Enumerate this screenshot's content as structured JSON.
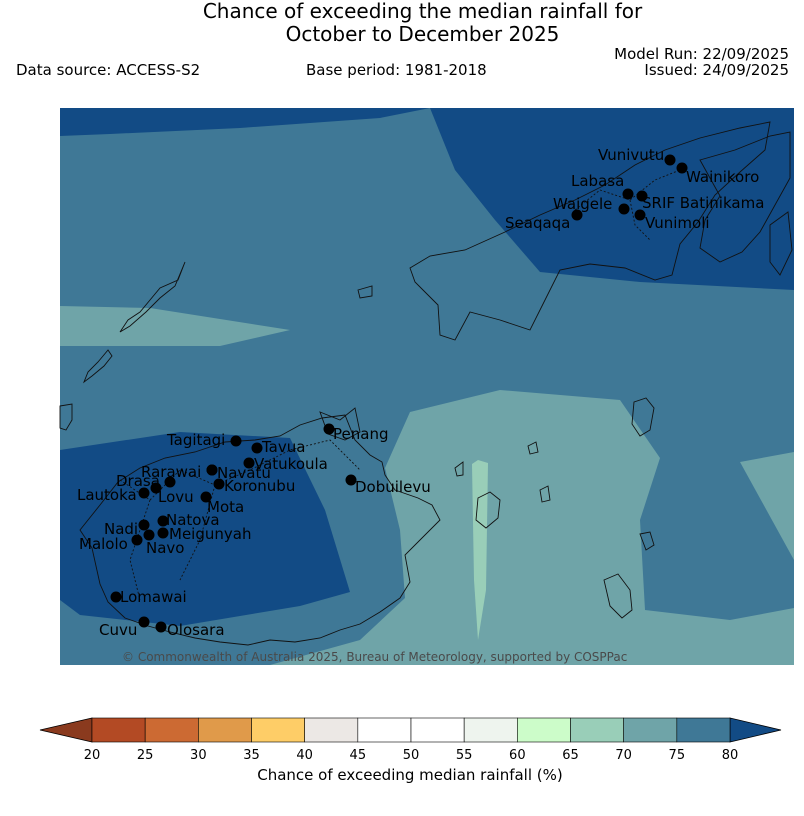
{
  "title_line1": "Chance of exceeding the median rainfall for",
  "title_line2": "October to December 2025",
  "data_source": "Data source: ACCESS-S2",
  "base_period": "Base period: 1981-2018",
  "model_run": "Model Run: 22/09/2025",
  "issued": "Issued: 24/09/2025",
  "copyright": "© Commonwealth of Australia 2025, Bureau of Meteorology, supported by COSPPac",
  "colorbar": {
    "title": "Chance of exceeding median rainfall (%)",
    "ticks": [
      "20",
      "25",
      "30",
      "35",
      "40",
      "45",
      "50",
      "55",
      "60",
      "65",
      "70",
      "75",
      "80"
    ],
    "colors": [
      "#b34a24",
      "#cc6a33",
      "#e09a4a",
      "#fecd67",
      "#ece8e5",
      "#ffffff",
      "#ffffff",
      "#eef4ee",
      "#ccfcc9",
      "#99ceb8",
      "#6fa4a8",
      "#3f7896"
    ],
    "under_color": "#8a3a1e",
    "over_color": "#124b85"
  },
  "contour_colors": {
    "65-70": "#99ceb8",
    "70-75": "#6fa4a8",
    "75-80": "#3f7896",
    "80+": "#124b85"
  },
  "stations": [
    {
      "name": "Vunivutu"
    },
    {
      "name": "Wainikoro"
    },
    {
      "name": "Labasa"
    },
    {
      "name": "Waigele"
    },
    {
      "name": "SRIF Batinikama"
    },
    {
      "name": "Seaqaqa"
    },
    {
      "name": "Vunimoli"
    },
    {
      "name": "Penang"
    },
    {
      "name": "Tagitagi"
    },
    {
      "name": "Tavua"
    },
    {
      "name": "Vatukoula"
    },
    {
      "name": "Rarawai"
    },
    {
      "name": "Navatu"
    },
    {
      "name": "Drasa"
    },
    {
      "name": "Koronubu"
    },
    {
      "name": "Lautoka"
    },
    {
      "name": "Lovu"
    },
    {
      "name": "Mota"
    },
    {
      "name": "Dobuilevu"
    },
    {
      "name": "Nadi"
    },
    {
      "name": "Natova"
    },
    {
      "name": "Meigunyah"
    },
    {
      "name": "Malolo"
    },
    {
      "name": "Navo"
    },
    {
      "name": "Lomawai"
    },
    {
      "name": "Cuvu"
    },
    {
      "name": "Olosara"
    }
  ]
}
